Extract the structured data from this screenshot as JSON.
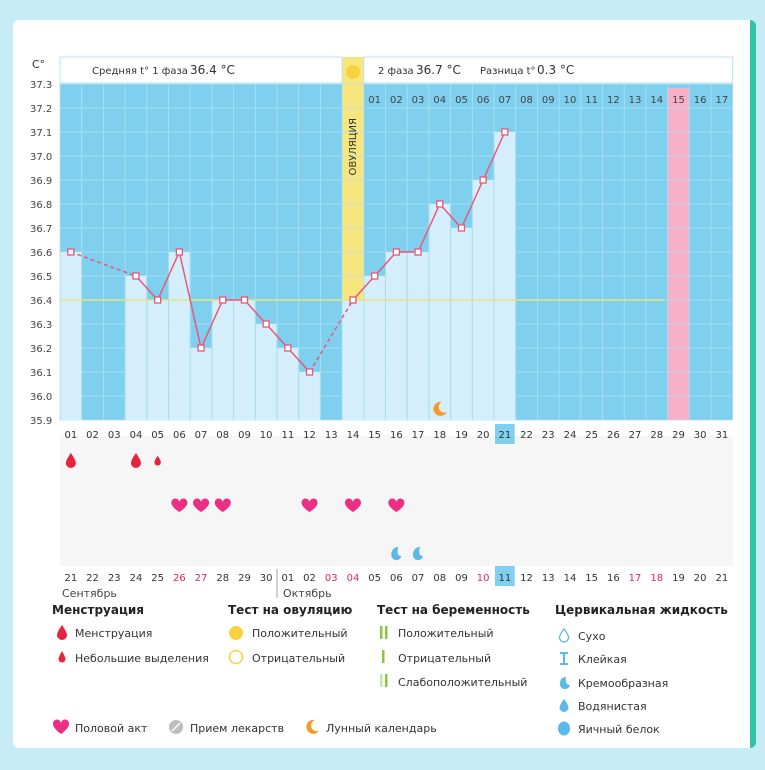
{
  "unit_label": "C°",
  "header": {
    "phase1_label": "Средняя t° 1 фаза",
    "phase1_value": "36.4 °C",
    "phase2_label": "2 фаза",
    "phase2_value": "36.7 °C",
    "diff_label": "Разница t°",
    "diff_value": "0.3 °C"
  },
  "ovulation_label": "ОВУЛЯЦИЯ",
  "colors": {
    "plot_bg": "#7fd0ee",
    "bar_fill": "#d4effb",
    "line": "#e8577a",
    "coverline": "#e6e27a",
    "ovulation": "#f7e67e",
    "ovulation_day": "#f8b0c8",
    "marker_red": "#e6243c",
    "heart": "#ee2d84",
    "moon": "#f49a25",
    "drop_blue": "#5cb8e6",
    "highlight": "#7fd0ee"
  },
  "chart_data": {
    "type": "line",
    "title": "",
    "xlabel": "",
    "ylabel": "C°",
    "ylim": [
      35.9,
      37.3
    ],
    "y_ticks": [
      "35.9",
      "36.0",
      "36.1",
      "36.2",
      "36.3",
      "36.4",
      "36.5",
      "36.6",
      "36.7",
      "36.8",
      "36.9",
      "37.0",
      "37.1",
      "37.2",
      "37.3"
    ],
    "cycle_days": [
      "01",
      "02",
      "03",
      "04",
      "05",
      "06",
      "07",
      "08",
      "09",
      "10",
      "11",
      "12",
      "13",
      "14",
      "15",
      "16",
      "17",
      "18",
      "19",
      "20",
      "21",
      "22",
      "23",
      "24",
      "25",
      "26",
      "27",
      "28",
      "29",
      "30",
      "31"
    ],
    "dates": [
      "21",
      "22",
      "23",
      "24",
      "25",
      "26",
      "27",
      "28",
      "29",
      "30",
      "01",
      "02",
      "03",
      "04",
      "05",
      "06",
      "07",
      "08",
      "09",
      "10",
      "11",
      "12",
      "13",
      "14",
      "15",
      "16",
      "17",
      "18",
      "19",
      "20",
      "21"
    ],
    "red_date_indices": [
      5,
      6,
      12,
      13,
      19,
      26,
      27
    ],
    "months": [
      "Сентябрь",
      "Октябрь"
    ],
    "luteal_days": [
      "01",
      "02",
      "03",
      "04",
      "05",
      "06",
      "07",
      "08",
      "09",
      "10",
      "11",
      "12",
      "13",
      "14",
      "15",
      "16",
      "17"
    ],
    "series": [
      {
        "values": [
          36.6,
          null,
          null,
          36.5,
          36.4,
          36.6,
          36.2,
          36.4,
          36.4,
          36.3,
          36.2,
          36.1,
          null,
          36.4,
          36.5,
          36.6,
          36.6,
          36.8,
          36.7,
          36.9,
          37.1,
          null,
          null,
          null,
          null,
          null,
          null,
          null,
          null,
          null,
          null
        ]
      }
    ],
    "coverline": 36.4,
    "ovulation_day": 14,
    "today_day": 21,
    "highlight_luteal_day": "15",
    "menstruation_days": [
      1,
      4
    ],
    "spotting_days": [
      5
    ],
    "intercourse_days": [
      6,
      7,
      8,
      12,
      14,
      16
    ],
    "creamy_fluid_days": [
      16,
      17
    ],
    "moon_days": [
      18
    ],
    "grid": true
  },
  "legend": {
    "menstruation": {
      "title": "Менструация",
      "items": [
        "Менструация",
        "Небольшие выделения"
      ]
    },
    "ovulation_test": {
      "title": "Тест на овуляцию",
      "items": [
        "Положительный",
        "Отрицательный"
      ]
    },
    "pregnancy_test": {
      "title": "Тест на беременность",
      "items": [
        "Положительный",
        "Отрицательный",
        "Слабоположительный"
      ]
    },
    "cervical": {
      "title": "Цервикальная жидкость",
      "items": [
        "Сухо",
        "Клейкая",
        "Кремообразная",
        "Водянистая",
        "Яичный белок"
      ]
    },
    "bottom": {
      "intercourse": "Половой акт",
      "medication": "Прием лекарств",
      "lunar": "Лунный календарь"
    }
  }
}
